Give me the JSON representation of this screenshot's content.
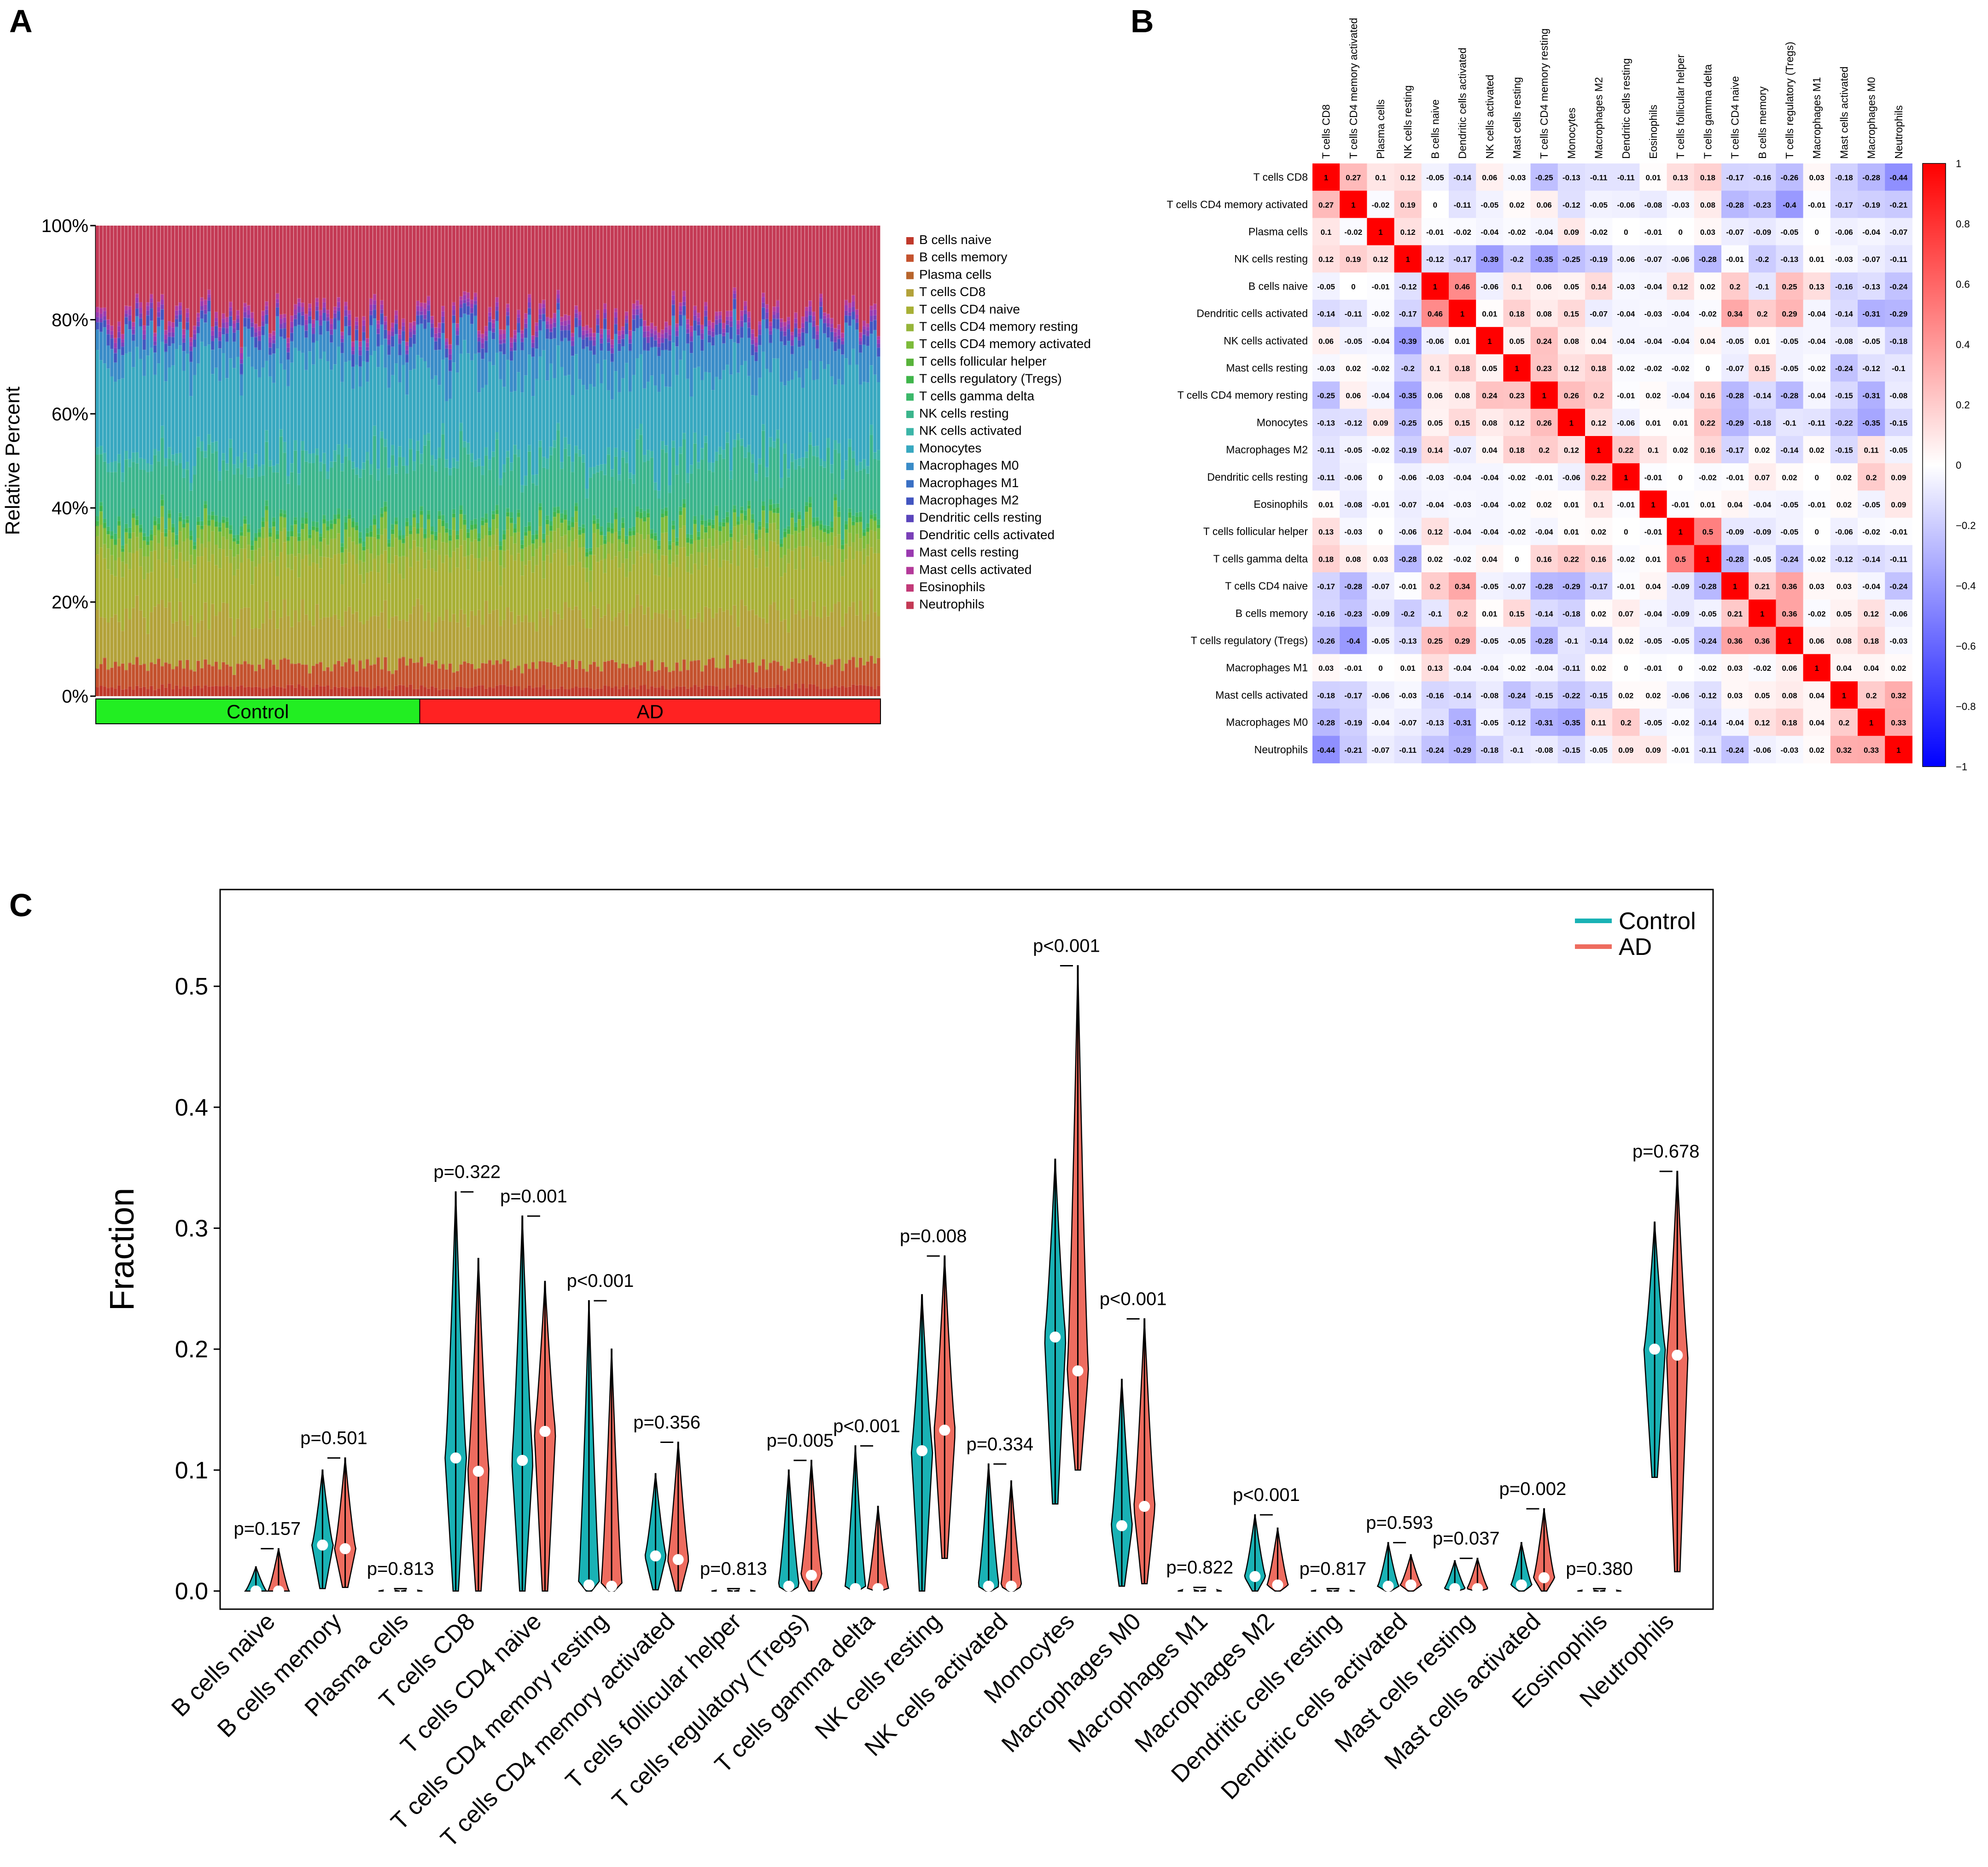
{
  "figure": {
    "panel_labels": [
      "A",
      "B",
      "C"
    ]
  },
  "chart_data": [
    {
      "panel": "A",
      "type": "stacked_bar",
      "ylabel": "Relative Percent",
      "yticks": [
        "0%",
        "20%",
        "40%",
        "60%",
        "80%",
        "100%"
      ],
      "ylim": [
        0,
        100
      ],
      "n_samples": 218,
      "groups": [
        {
          "name": "Control",
          "n": 90,
          "color": "#22ee22"
        },
        {
          "name": "AD",
          "n": 128,
          "color": "#ff2222"
        }
      ],
      "cell_types": [
        "B cells naive",
        "B cells memory",
        "Plasma cells",
        "T cells CD8",
        "T cells CD4 naive",
        "T cells CD4 memory resting",
        "T cells CD4 memory activated",
        "T cells follicular helper",
        "T cells regulatory (Tregs)",
        "T cells gamma delta",
        "NK cells resting",
        "NK cells activated",
        "Monocytes",
        "Macrophages M0",
        "Macrophages M1",
        "Macrophages M2",
        "Dendritic cells resting",
        "Dendritic cells activated",
        "Mast cells resting",
        "Mast cells activated",
        "Eosinophils",
        "Neutrophils"
      ],
      "colors": [
        "#c0392b",
        "#c4522e",
        "#b8652c",
        "#b3a23a",
        "#a8b035",
        "#96b53a",
        "#7dbb3a",
        "#58b33a",
        "#3fb54a",
        "#3cb86a",
        "#3bb58c",
        "#3cb5a8",
        "#38a8c0",
        "#3a8cc8",
        "#3a70c4",
        "#4255c0",
        "#5a45bc",
        "#7a40b8",
        "#9a3ab0",
        "#b43a9a",
        "#c23a78",
        "#c43a55"
      ],
      "mean_fraction": [
        0.02,
        0.05,
        0.001,
        0.11,
        0.12,
        0.04,
        0.03,
        0.001,
        0.01,
        0.01,
        0.13,
        0.02,
        0.2,
        0.06,
        0.001,
        0.02,
        0.001,
        0.01,
        0.01,
        0.01,
        0.001,
        0.2
      ]
    },
    {
      "panel": "B",
      "type": "heatmap",
      "labels": [
        "T cells CD8",
        "T cells CD4 memory activated",
        "Plasma cells",
        "NK cells resting",
        "B cells naive",
        "Dendritic cells activated",
        "NK cells activated",
        "Mast cells resting",
        "T cells CD4 memory resting",
        "Monocytes",
        "Macrophages M2",
        "Dendritic cells resting",
        "Eosinophils",
        "T cells follicular helper",
        "T cells gamma delta",
        "T cells CD4 naive",
        "B cells memory",
        "T cells regulatory (Tregs)",
        "Macrophages M1",
        "Mast cells activated",
        "Macrophages M0",
        "Neutrophils"
      ],
      "colorbar_ticks": [
        "1",
        "0.8",
        "0.6",
        "0.4",
        "0.2",
        "0",
        "−0.2",
        "−0.4",
        "−0.6",
        "−0.8",
        "−1"
      ],
      "matrix": [
        [
          1,
          0.27,
          0.1,
          0.12,
          -0.05,
          -0.14,
          0.06,
          -0.03,
          -0.25,
          -0.13,
          -0.11,
          -0.11,
          0.01,
          0.13,
          0.18,
          -0.17,
          -0.16,
          -0.26,
          0.03,
          -0.18,
          -0.28,
          -0.44
        ],
        [
          0.27,
          1,
          -0.02,
          0.19,
          0,
          -0.11,
          -0.05,
          0.02,
          0.06,
          -0.12,
          -0.05,
          -0.06,
          -0.08,
          -0.03,
          0.08,
          -0.28,
          -0.23,
          -0.4,
          -0.01,
          -0.17,
          -0.19,
          -0.21
        ],
        [
          0.1,
          -0.02,
          1,
          0.12,
          -0.01,
          -0.02,
          -0.04,
          -0.02,
          -0.04,
          0.09,
          -0.02,
          0,
          -0.01,
          0,
          0.03,
          -0.07,
          -0.09,
          -0.05,
          0,
          -0.06,
          -0.04,
          -0.07
        ],
        [
          0.12,
          0.19,
          0.12,
          1,
          -0.12,
          -0.17,
          -0.39,
          -0.2,
          -0.35,
          -0.25,
          -0.19,
          -0.06,
          -0.07,
          -0.06,
          -0.28,
          -0.01,
          -0.2,
          -0.13,
          0.01,
          -0.03,
          -0.07,
          -0.11
        ],
        [
          -0.05,
          0,
          -0.01,
          -0.12,
          1,
          0.46,
          -0.06,
          0.1,
          0.06,
          0.05,
          0.14,
          -0.03,
          -0.04,
          0.12,
          0.02,
          0.2,
          -0.1,
          0.25,
          0.13,
          -0.16,
          -0.13,
          -0.24
        ],
        [
          -0.14,
          -0.11,
          -0.02,
          -0.17,
          0.46,
          1,
          0.01,
          0.18,
          0.08,
          0.15,
          -0.07,
          -0.04,
          -0.03,
          -0.04,
          -0.02,
          0.34,
          0.2,
          0.29,
          -0.04,
          -0.14,
          -0.31,
          -0.29
        ],
        [
          0.06,
          -0.05,
          -0.04,
          -0.39,
          -0.06,
          0.01,
          1,
          0.05,
          0.24,
          0.08,
          0.04,
          -0.04,
          -0.04,
          -0.04,
          0.04,
          -0.05,
          0.01,
          -0.05,
          -0.04,
          -0.08,
          -0.05,
          -0.18
        ],
        [
          -0.03,
          0.02,
          -0.02,
          -0.2,
          0.1,
          0.18,
          0.05,
          1,
          0.23,
          0.12,
          0.18,
          -0.02,
          -0.02,
          -0.02,
          0,
          -0.07,
          0.15,
          -0.05,
          -0.02,
          -0.24,
          -0.12,
          -0.1
        ],
        [
          -0.25,
          0.06,
          -0.04,
          -0.35,
          0.06,
          0.08,
          0.24,
          0.23,
          1,
          0.26,
          0.2,
          -0.01,
          0.02,
          -0.04,
          0.16,
          -0.28,
          -0.14,
          -0.28,
          -0.04,
          -0.15,
          -0.31,
          -0.08
        ],
        [
          -0.13,
          -0.12,
          0.09,
          -0.25,
          0.05,
          0.15,
          0.08,
          0.12,
          0.26,
          1,
          0.12,
          -0.06,
          0.01,
          0.01,
          0.22,
          -0.29,
          -0.18,
          -0.1,
          -0.11,
          -0.22,
          -0.35,
          -0.15
        ],
        [
          -0.11,
          -0.05,
          -0.02,
          -0.19,
          0.14,
          -0.07,
          0.04,
          0.18,
          0.2,
          0.12,
          1,
          0.22,
          0.1,
          0.02,
          0.16,
          -0.17,
          0.02,
          -0.14,
          0.02,
          -0.15,
          0.11,
          -0.05
        ],
        [
          -0.11,
          -0.06,
          0,
          -0.06,
          -0.03,
          -0.04,
          -0.04,
          -0.02,
          -0.01,
          -0.06,
          0.22,
          1,
          -0.01,
          0,
          -0.02,
          -0.01,
          0.07,
          0.02,
          0,
          0.02,
          0.2,
          0.09
        ],
        [
          0.01,
          -0.08,
          -0.01,
          -0.07,
          -0.04,
          -0.03,
          -0.04,
          -0.02,
          0.02,
          0.01,
          0.1,
          -0.01,
          1,
          -0.01,
          0.01,
          0.04,
          -0.04,
          -0.05,
          -0.01,
          0.02,
          -0.05,
          0.09
        ],
        [
          0.13,
          -0.03,
          0,
          -0.06,
          0.12,
          -0.04,
          -0.04,
          -0.02,
          -0.04,
          0.01,
          0.02,
          0,
          -0.01,
          1,
          0.5,
          -0.09,
          -0.09,
          -0.05,
          0,
          -0.06,
          -0.02,
          -0.01
        ],
        [
          0.18,
          0.08,
          0.03,
          -0.28,
          0.02,
          -0.02,
          0.04,
          0,
          0.16,
          0.22,
          0.16,
          -0.02,
          0.01,
          0.5,
          1,
          -0.28,
          -0.05,
          -0.24,
          -0.02,
          -0.12,
          -0.14,
          -0.11
        ],
        [
          -0.17,
          -0.28,
          -0.07,
          -0.01,
          0.2,
          0.34,
          -0.05,
          -0.07,
          -0.28,
          -0.29,
          -0.17,
          -0.01,
          0.04,
          -0.09,
          -0.28,
          1,
          0.21,
          0.36,
          0.03,
          0.03,
          -0.04,
          -0.24
        ],
        [
          -0.16,
          -0.23,
          -0.09,
          -0.2,
          -0.1,
          0.2,
          0.01,
          0.15,
          -0.14,
          -0.18,
          0.02,
          0.07,
          -0.04,
          -0.09,
          -0.05,
          0.21,
          1,
          0.36,
          -0.02,
          0.05,
          0.12,
          -0.06
        ],
        [
          -0.26,
          -0.4,
          -0.05,
          -0.13,
          0.25,
          0.29,
          -0.05,
          -0.05,
          -0.28,
          -0.1,
          -0.14,
          0.02,
          -0.05,
          -0.05,
          -0.24,
          0.36,
          0.36,
          1,
          0.06,
          0.08,
          0.18,
          -0.03
        ],
        [
          0.03,
          -0.01,
          0,
          0.01,
          0.13,
          -0.04,
          -0.04,
          -0.02,
          -0.04,
          -0.11,
          0.02,
          0,
          -0.01,
          0,
          -0.02,
          0.03,
          -0.02,
          0.06,
          1,
          0.04,
          0.04,
          0.02
        ],
        [
          -0.18,
          -0.17,
          -0.06,
          -0.03,
          -0.16,
          -0.14,
          -0.08,
          -0.24,
          -0.15,
          -0.22,
          -0.15,
          0.02,
          0.02,
          -0.06,
          -0.12,
          0.03,
          0.05,
          0.08,
          0.04,
          1,
          0.2,
          0.32
        ],
        [
          -0.28,
          -0.19,
          -0.04,
          -0.07,
          -0.13,
          -0.31,
          -0.05,
          -0.12,
          -0.31,
          -0.35,
          0.11,
          0.2,
          -0.05,
          -0.02,
          -0.14,
          -0.04,
          0.12,
          0.18,
          0.04,
          0.2,
          1,
          0.33
        ],
        [
          -0.44,
          -0.21,
          -0.07,
          -0.11,
          -0.24,
          -0.29,
          -0.18,
          -0.1,
          -0.08,
          -0.15,
          -0.05,
          0.09,
          0.09,
          -0.01,
          -0.11,
          -0.24,
          -0.06,
          -0.03,
          0.02,
          0.32,
          0.33,
          1
        ]
      ]
    },
    {
      "panel": "C",
      "type": "violin",
      "ylabel": "Fraction",
      "yticks": [
        "0.0",
        "0.1",
        "0.2",
        "0.3",
        "0.4",
        "0.5"
      ],
      "ylim": [
        -0.015,
        0.58
      ],
      "legend": [
        {
          "name": "Control",
          "color": "#19b2b5"
        },
        {
          "name": "AD",
          "color": "#ee6c5f"
        }
      ],
      "categories": [
        "B cells naive",
        "B cells memory",
        "Plasma cells",
        "T cells CD8",
        "T cells CD4 naive",
        "T cells CD4 memory resting",
        "T cells CD4 memory activated",
        "T cells follicular helper",
        "T cells regulatory (Tregs)",
        "T cells gamma delta",
        "NK cells resting",
        "NK cells activated",
        "Monocytes",
        "Macrophages M0",
        "Macrophages M1",
        "Macrophages M2",
        "Dendritic cells resting",
        "Dendritic cells activated",
        "Mast cells resting",
        "Mast cells activated",
        "Eosinophils",
        "Neutrophils"
      ],
      "p_values": [
        "p=0.157",
        "p=0.501",
        "p=0.813",
        "p=0.322",
        "p=0.001",
        "p<0.001",
        "p=0.356",
        "p=0.813",
        "p=0.005",
        "p<0.001",
        "p=0.008",
        "p=0.334",
        "p<0.001",
        "p<0.001",
        "p=0.822",
        "p<0.001",
        "p=0.817",
        "p=0.593",
        "p=0.037",
        "p=0.002",
        "p=0.380",
        "p=0.678"
      ],
      "control": {
        "median": [
          0.0,
          0.038,
          0.0,
          0.11,
          0.108,
          0.005,
          0.029,
          0.0,
          0.004,
          0.002,
          0.116,
          0.004,
          0.21,
          0.054,
          0.0,
          0.012,
          0.0,
          0.004,
          0.002,
          0.005,
          0.0,
          0.2
        ],
        "min": [
          0,
          0.002,
          0,
          0.0,
          0.0,
          0,
          0.001,
          0,
          0,
          0,
          0.0,
          0,
          0.072,
          0.004,
          0,
          0,
          0,
          0,
          0,
          0,
          0,
          0.094
        ],
        "max": [
          0.02,
          0.1,
          0.002,
          0.33,
          0.31,
          0.24,
          0.097,
          0.002,
          0.1,
          0.12,
          0.245,
          0.105,
          0.357,
          0.175,
          0.003,
          0.063,
          0.002,
          0.04,
          0.025,
          0.04,
          0.002,
          0.305
        ]
      },
      "ad": {
        "median": [
          0.0,
          0.035,
          0.0,
          0.099,
          0.132,
          0.004,
          0.026,
          0.0,
          0.013,
          0.002,
          0.133,
          0.004,
          0.182,
          0.07,
          0.0,
          0.005,
          0.0,
          0.005,
          0.002,
          0.011,
          0.0,
          0.195
        ],
        "min": [
          0,
          0.003,
          0,
          0.0,
          0.0,
          0,
          0.0,
          0,
          0,
          0,
          0.027,
          0,
          0.1,
          0.006,
          0,
          0,
          0,
          0,
          0,
          0,
          0,
          0.016
        ],
        "max": [
          0.035,
          0.11,
          0.002,
          0.275,
          0.256,
          0.2,
          0.123,
          0.002,
          0.108,
          0.07,
          0.277,
          0.091,
          0.517,
          0.225,
          0.003,
          0.052,
          0.002,
          0.03,
          0.027,
          0.068,
          0.002,
          0.347
        ]
      }
    }
  ]
}
